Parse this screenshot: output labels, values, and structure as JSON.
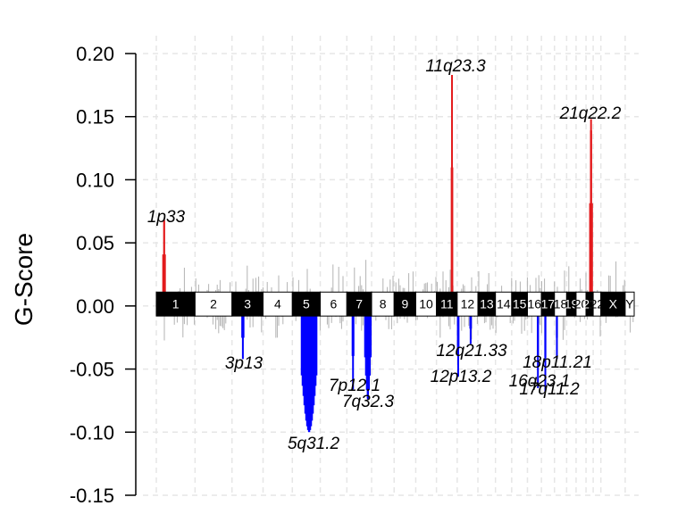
{
  "chart_data": {
    "type": "bar",
    "title": "",
    "xlabel": "",
    "ylabel": "G-Score",
    "ylim": [
      -0.15,
      0.2
    ],
    "yticks": [
      -0.15,
      -0.1,
      -0.05,
      0.0,
      0.05,
      0.1,
      0.15,
      0.2
    ],
    "ytick_labels": [
      "-0.15",
      "-0.10",
      "-0.05",
      "0.00",
      "0.05",
      "0.10",
      "0.15",
      "0.20"
    ],
    "grid": true,
    "colors": {
      "amp": "#e31a1c",
      "del": "#0000ff",
      "neutral": "#b3b3b3",
      "band_dark": "#000000",
      "band_light": "#ffffff"
    },
    "chromosomes": [
      "1",
      "2",
      "3",
      "4",
      "5",
      "6",
      "7",
      "8",
      "9",
      "10",
      "11",
      "12",
      "13",
      "14",
      "15",
      "16",
      "17",
      "18",
      "19",
      "20",
      "21",
      "22",
      "X",
      "Y"
    ],
    "chromosome_labels": [
      "1",
      "2",
      "3",
      "4",
      "5",
      "6",
      "7",
      "8",
      "9",
      "10",
      "11",
      "12",
      "13",
      "14",
      "15",
      "16",
      "17",
      "18",
      "19",
      "20",
      "21",
      "22",
      "X",
      "Y"
    ],
    "peaks": [
      {
        "label": "1p33",
        "chrom": "1",
        "pos": 0.2,
        "g": 0.068,
        "type": "amp"
      },
      {
        "label": "11q23.3",
        "chrom": "11",
        "pos": 0.75,
        "g": 0.183,
        "type": "amp"
      },
      {
        "label": "21q22.2",
        "chrom": "21",
        "pos": 0.7,
        "g": 0.148,
        "type": "amp"
      },
      {
        "label": "3p13",
        "chrom": "3",
        "pos": 0.35,
        "g": -0.042,
        "type": "del"
      },
      {
        "label": "5q31.2",
        "chrom": "5",
        "pos": 0.6,
        "g": -0.1,
        "type": "del"
      },
      {
        "label": "7p12.1",
        "chrom": "7",
        "pos": 0.25,
        "g": -0.066,
        "type": "del"
      },
      {
        "label": "7q32.3",
        "chrom": "7",
        "pos": 0.85,
        "g": -0.074,
        "type": "del"
      },
      {
        "label": "12q21.33",
        "chrom": "12",
        "pos": 0.65,
        "g": -0.03,
        "type": "del"
      },
      {
        "label": "12p13.2",
        "chrom": "12",
        "pos": 0.05,
        "g": -0.056,
        "type": "del"
      },
      {
        "label": "18p11.21",
        "chrom": "18",
        "pos": 0.2,
        "g": -0.042,
        "type": "del"
      },
      {
        "label": "16q23.1",
        "chrom": "16",
        "pos": 0.75,
        "g": -0.065,
        "type": "del"
      },
      {
        "label": "17q11.2",
        "chrom": "17",
        "pos": 0.3,
        "g": -0.068,
        "type": "del"
      }
    ],
    "annotations": [
      "1p33",
      "11q23.3",
      "21q22.2",
      "3p13",
      "5q31.2",
      "7p12.1",
      "7q32.3",
      "12q21.33",
      "12p13.2",
      "18p11.21",
      "16q23.1",
      "17q11.2"
    ]
  }
}
